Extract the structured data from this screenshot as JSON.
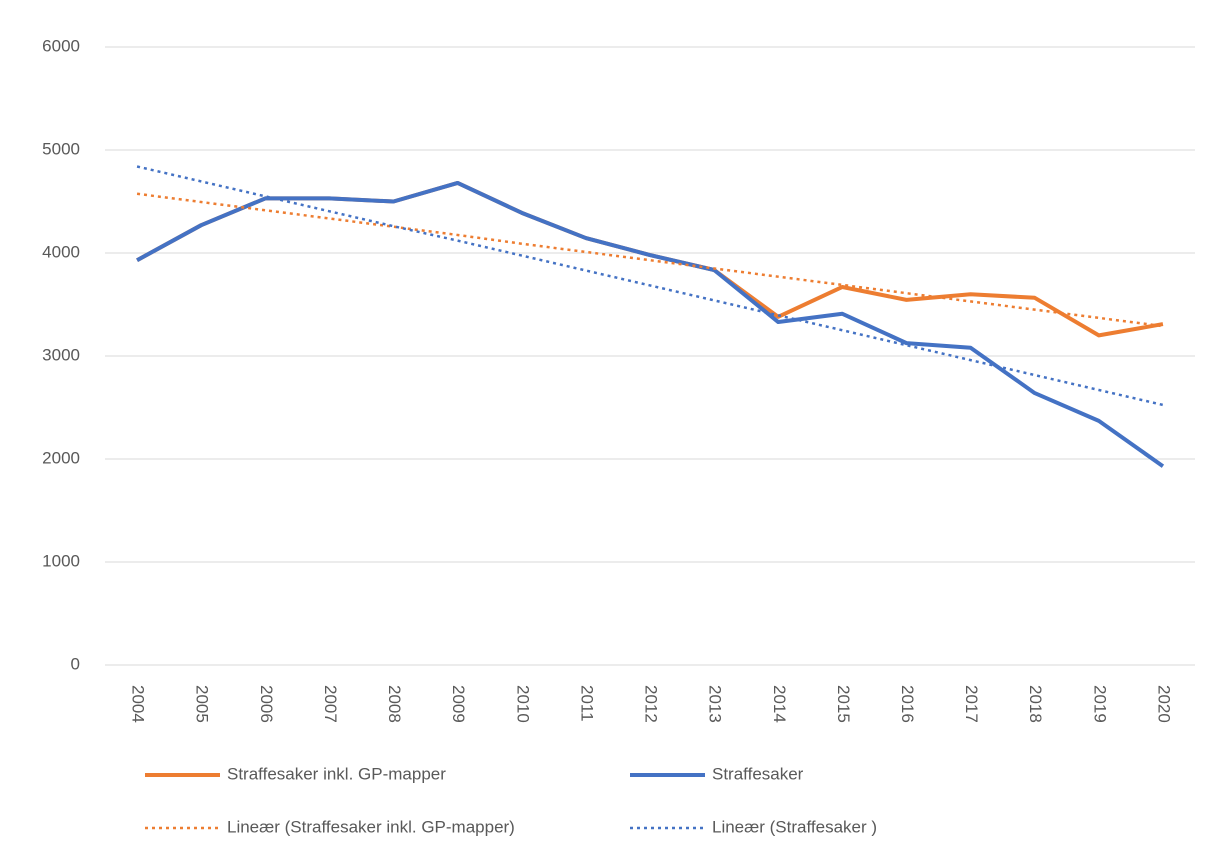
{
  "chart_data": {
    "type": "line",
    "categories": [
      "2004",
      "2005",
      "2006",
      "2007",
      "2008",
      "2009",
      "2010",
      "2011",
      "2012",
      "2013",
      "2014",
      "2015",
      "2016",
      "2017",
      "2018",
      "2019",
      "2020"
    ],
    "series": [
      {
        "name": "Straffesaker inkl. GP-mapper",
        "color": "#ED7D31",
        "dashed": false,
        "values": [
          3930,
          4270,
          4530,
          4530,
          4500,
          4680,
          4390,
          4145,
          3980,
          3835,
          3380,
          3670,
          3545,
          3600,
          3565,
          3200,
          3310
        ]
      },
      {
        "name": "Straffesaker",
        "color": "#4472C4",
        "dashed": false,
        "values": [
          3930,
          4270,
          4530,
          4530,
          4500,
          4680,
          4390,
          4145,
          3980,
          3835,
          3330,
          3410,
          3125,
          3080,
          2640,
          2370,
          1930
        ]
      },
      {
        "name": "Lineær (Straffesaker inkl. GP-mapper)",
        "color": "#ED7D31",
        "dashed": true,
        "values": [
          4575,
          4495,
          4415,
          4335,
          4255,
          4175,
          4090,
          4010,
          3930,
          3850,
          3770,
          3690,
          3610,
          3530,
          3450,
          3370,
          3290
        ]
      },
      {
        "name": "Lineær (Straffesaker )",
        "color": "#4472C4",
        "dashed": true,
        "values": [
          4840,
          4695,
          4550,
          4405,
          4260,
          4120,
          3975,
          3830,
          3685,
          3540,
          3395,
          3250,
          3105,
          2960,
          2815,
          2670,
          2525
        ]
      }
    ],
    "ylim": [
      0,
      6000
    ],
    "yticks": [
      0,
      1000,
      2000,
      3000,
      4000,
      5000,
      6000
    ],
    "grid": true,
    "legend": "bottom"
  }
}
